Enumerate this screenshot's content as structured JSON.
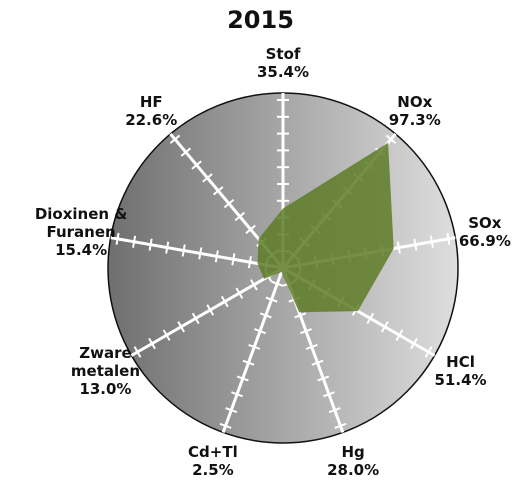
{
  "chart_data": {
    "type": "radar",
    "title": "2015",
    "categories": [
      "Stof",
      "NOx",
      "SOx",
      "HCl",
      "Hg",
      "Cd+Tl",
      "Zware metalen",
      "Dioxinen & Furanen",
      "HF"
    ],
    "values": [
      35.4,
      97.3,
      66.9,
      51.4,
      28.0,
      2.5,
      13.0,
      15.4,
      22.6
    ],
    "value_labels": [
      "35.4%",
      "97.3%",
      "66.9%",
      "51.4%",
      "28.0%",
      "2.5%",
      "13.0%",
      "15.4%",
      "22.6%"
    ],
    "color": "#5d7d26",
    "rlim": [
      0,
      100
    ],
    "rticks": [
      10,
      20,
      30,
      40,
      50,
      60,
      70,
      80,
      90,
      100
    ]
  }
}
